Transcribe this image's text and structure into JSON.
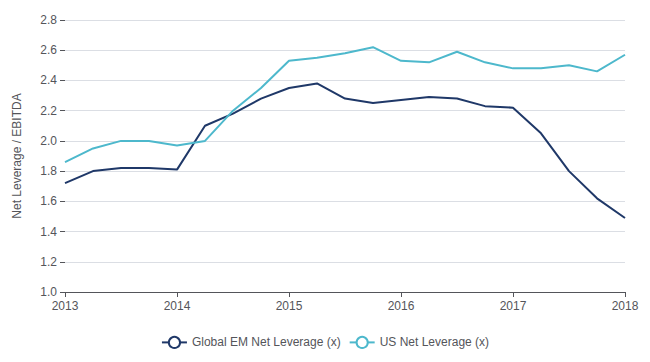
{
  "chart_data": {
    "type": "line",
    "ylabel": "Net Leverage / EBITDA",
    "x": [
      2013.0,
      2013.25,
      2013.5,
      2013.75,
      2014.0,
      2014.25,
      2014.5,
      2014.75,
      2015.0,
      2015.25,
      2015.5,
      2015.75,
      2016.0,
      2016.25,
      2016.5,
      2016.75,
      2017.0,
      2017.25,
      2017.5,
      2017.75,
      2018.0
    ],
    "series": [
      {
        "name": "Global EM Net Leverage (x)",
        "color": "#1f3868",
        "values": [
          1.72,
          1.8,
          1.82,
          1.82,
          1.81,
          2.1,
          2.18,
          2.28,
          2.35,
          2.38,
          2.28,
          2.25,
          2.27,
          2.29,
          2.28,
          2.23,
          2.22,
          2.05,
          1.8,
          1.62,
          1.49
        ]
      },
      {
        "name": "US Net Leverage (x)",
        "color": "#4db8cc",
        "values": [
          1.86,
          1.95,
          2.0,
          2.0,
          1.97,
          2.0,
          2.2,
          2.35,
          2.53,
          2.55,
          2.58,
          2.62,
          2.53,
          2.52,
          2.59,
          2.52,
          2.48,
          2.48,
          2.5,
          2.46,
          2.57
        ]
      }
    ],
    "xlim": [
      2013,
      2018
    ],
    "xticks": [
      2013,
      2014,
      2015,
      2016,
      2017,
      2018
    ],
    "ylim": [
      1.0,
      2.8
    ],
    "yticks": [
      {
        "value": 1.0,
        "label": "1.0"
      },
      1.2,
      1.4,
      1.6,
      1.8,
      {
        "value": 2.0,
        "label": "2.0"
      },
      2.2,
      2.4,
      2.6,
      2.8
    ],
    "grid": true,
    "legend": "bottom"
  }
}
